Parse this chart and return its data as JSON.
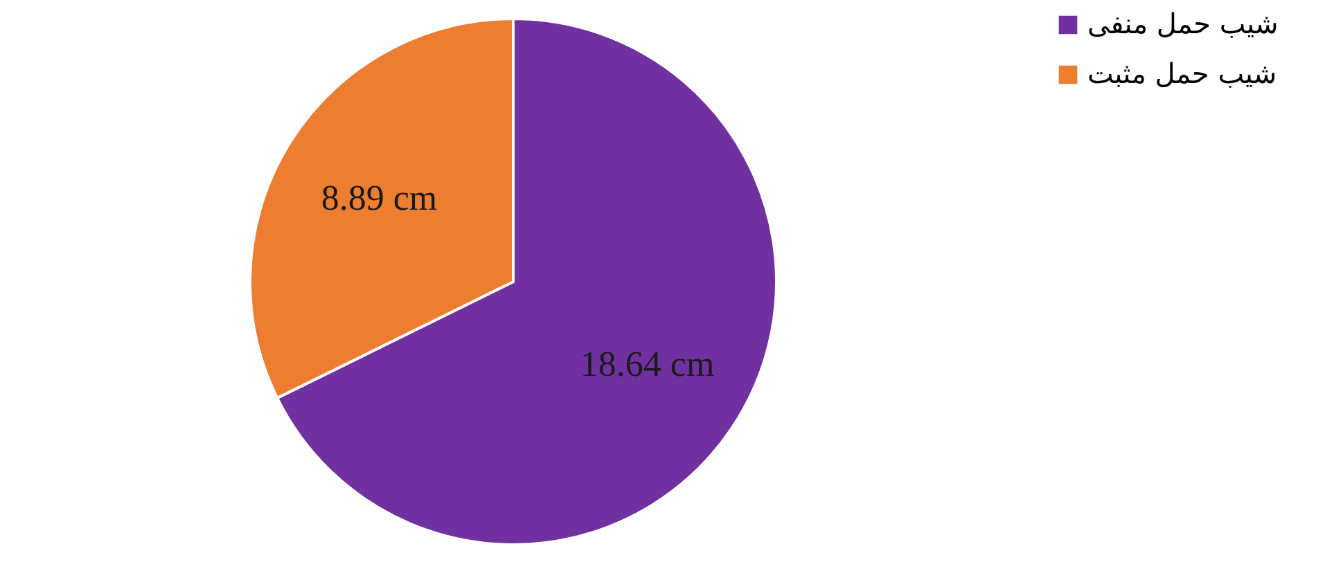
{
  "chart_data": {
    "type": "pie",
    "categories": [
      "شیب حمل منفی",
      "شیب حمل مثبت"
    ],
    "values": [
      18.64,
      8.89
    ],
    "colors": [
      "#7030a0",
      "#ed7d31"
    ],
    "value_labels": [
      "18.64 cm",
      "8.89 cm"
    ],
    "legend": "top right"
  }
}
